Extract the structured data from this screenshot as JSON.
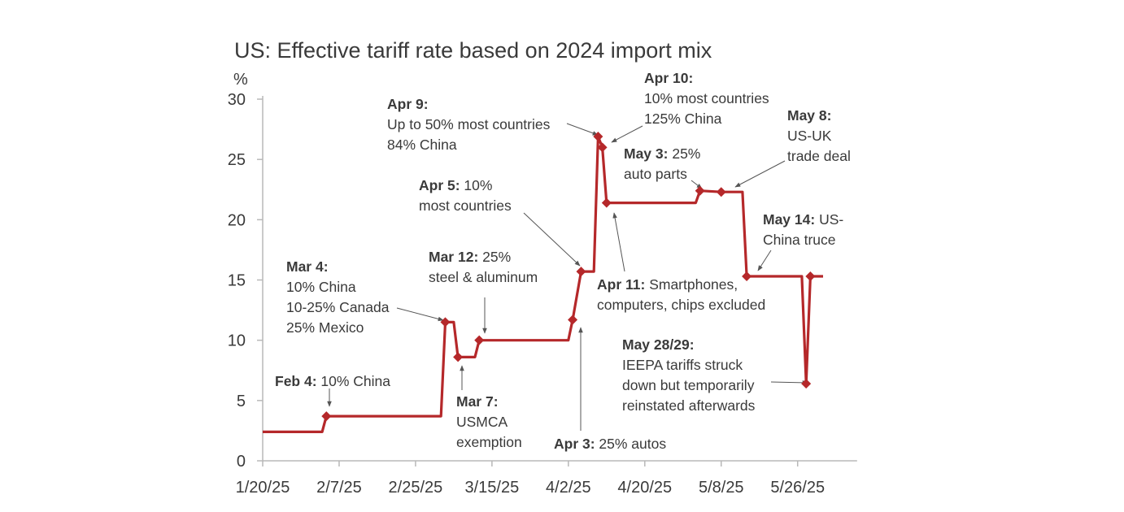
{
  "chart_data": {
    "type": "line",
    "title": "US: Effective tariff rate based on 2024 import mix",
    "ylabel": "%",
    "xlabel": "",
    "ylim": [
      0,
      30
    ],
    "yticks": [
      0,
      5,
      10,
      15,
      20,
      25,
      30
    ],
    "xlim": [
      "2025-01-20",
      "2025-06-09"
    ],
    "xticks": [
      {
        "date": "2025-01-20",
        "label": "1/20/25"
      },
      {
        "date": "2025-02-07",
        "label": "2/7/25"
      },
      {
        "date": "2025-02-25",
        "label": "2/25/25"
      },
      {
        "date": "2025-03-15",
        "label": "3/15/25"
      },
      {
        "date": "2025-04-02",
        "label": "4/2/25"
      },
      {
        "date": "2025-04-20",
        "label": "4/20/25"
      },
      {
        "date": "2025-05-08",
        "label": "5/8/25"
      },
      {
        "date": "2025-05-26",
        "label": "5/26/25"
      }
    ],
    "series": [
      {
        "name": "Effective tariff rate",
        "color": "#b5282a",
        "points": [
          {
            "date": "2025-01-20",
            "value": 2.4
          },
          {
            "date": "2025-02-03",
            "value": 2.4
          },
          {
            "date": "2025-02-04",
            "value": 3.7,
            "marker": true
          },
          {
            "date": "2025-03-03",
            "value": 3.7
          },
          {
            "date": "2025-03-04",
            "value": 11.5,
            "marker": true
          },
          {
            "date": "2025-03-06",
            "value": 11.5
          },
          {
            "date": "2025-03-07",
            "value": 8.6,
            "marker": true
          },
          {
            "date": "2025-03-11",
            "value": 8.6
          },
          {
            "date": "2025-03-12",
            "value": 10.0,
            "marker": true
          },
          {
            "date": "2025-04-02",
            "value": 10.0
          },
          {
            "date": "2025-04-03",
            "value": 11.7,
            "marker": true
          },
          {
            "date": "2025-04-05",
            "value": 15.7,
            "marker": true
          },
          {
            "date": "2025-04-08",
            "value": 15.7
          },
          {
            "date": "2025-04-09",
            "value": 26.9,
            "marker": true
          },
          {
            "date": "2025-04-10",
            "value": 26.0,
            "marker": true
          },
          {
            "date": "2025-04-11",
            "value": 21.4,
            "marker": true
          },
          {
            "date": "2025-05-02",
            "value": 21.4
          },
          {
            "date": "2025-05-03",
            "value": 22.4,
            "marker": true
          },
          {
            "date": "2025-05-08",
            "value": 22.3,
            "marker": true
          },
          {
            "date": "2025-05-13",
            "value": 22.3
          },
          {
            "date": "2025-05-14",
            "value": 15.3,
            "marker": true
          },
          {
            "date": "2025-05-27",
            "value": 15.3
          },
          {
            "date": "2025-05-28",
            "value": 6.4,
            "marker": true
          },
          {
            "date": "2025-05-29",
            "value": 15.3,
            "marker": true
          },
          {
            "date": "2025-06-01",
            "value": 15.3
          }
        ]
      }
    ],
    "annotations": [
      {
        "id": "feb4",
        "bold": "Feb 4:",
        "lines": [
          "10% China"
        ],
        "date": "2025-02-04",
        "value": 3.7
      },
      {
        "id": "mar4",
        "bold": "Mar 4:",
        "lines": [
          "10% China",
          "10-25% Canada",
          "25% Mexico"
        ],
        "date": "2025-03-04",
        "value": 11.5
      },
      {
        "id": "mar7",
        "bold": "Mar 7:",
        "lines": [
          "USMCA",
          "exemption"
        ],
        "date": "2025-03-07",
        "value": 8.6
      },
      {
        "id": "mar12",
        "bold": "Mar 12:",
        "lines": [
          "25%",
          "steel & aluminum"
        ],
        "date": "2025-03-12",
        "value": 10.0
      },
      {
        "id": "apr3",
        "bold": "Apr 3:",
        "lines": [
          "25% autos"
        ],
        "date": "2025-04-03",
        "value": 11.7
      },
      {
        "id": "apr5",
        "bold": "Apr 5:",
        "lines": [
          "10%",
          "most countries"
        ],
        "date": "2025-04-05",
        "value": 15.7
      },
      {
        "id": "apr9",
        "bold": "Apr 9:",
        "lines": [
          "Up to 50% most countries",
          "84% China"
        ],
        "date": "2025-04-09",
        "value": 26.9
      },
      {
        "id": "apr10",
        "bold": "Apr 10:",
        "lines": [
          "10% most countries",
          "125% China"
        ],
        "date": "2025-04-10",
        "value": 26.0
      },
      {
        "id": "apr11",
        "bold": "Apr 11:",
        "lines": [
          "Smartphones,",
          "computers, chips excluded"
        ],
        "date": "2025-04-11",
        "value": 21.4
      },
      {
        "id": "may3",
        "bold": "May 3:",
        "lines": [
          "25%",
          "auto parts"
        ],
        "date": "2025-05-03",
        "value": 22.4
      },
      {
        "id": "may8",
        "bold": "May 8:",
        "lines": [
          "US-UK",
          "trade deal"
        ],
        "date": "2025-05-08",
        "value": 22.3
      },
      {
        "id": "may14",
        "bold": "May 14:",
        "lines": [
          "US-",
          "China truce"
        ],
        "date": "2025-05-14",
        "value": 15.3
      },
      {
        "id": "may2829",
        "bold": "May 28/29:",
        "lines": [
          "IEEPA tariffs struck",
          "down but temporarily",
          "reinstated afterwards"
        ],
        "date": "2025-05-28",
        "value": 6.4
      }
    ]
  }
}
